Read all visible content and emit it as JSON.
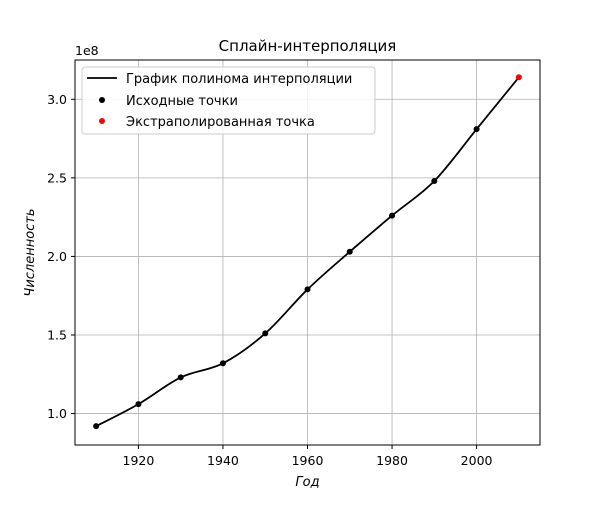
{
  "chart_data": {
    "type": "line",
    "title": "Сплайн-интерполяция",
    "xlabel": "Год",
    "ylabel": "Численность",
    "y_multiplier_label": "1e8",
    "xlim": [
      1905,
      2015
    ],
    "ylim": [
      0.8,
      3.25
    ],
    "x_ticks": [
      1920,
      1940,
      1960,
      1980,
      2000
    ],
    "y_ticks": [
      1.0,
      1.5,
      2.0,
      2.5,
      3.0
    ],
    "y_tick_labels": [
      "1.0",
      "1.5",
      "2.0",
      "2.5",
      "3.0"
    ],
    "grid": true,
    "legend_position": "top-left",
    "colors": {
      "line": "#000000",
      "points": "#000000",
      "extrapolated": "#ff0000",
      "grid": "#b0b0b0"
    },
    "series": [
      {
        "name": "График полинома интерполяции",
        "kind": "line",
        "x": [
          1910,
          1920,
          1930,
          1940,
          1950,
          1960,
          1970,
          1980,
          1990,
          2000,
          2010
        ],
        "y": [
          0.92,
          1.06,
          1.23,
          1.32,
          1.51,
          1.79,
          2.03,
          2.26,
          2.48,
          2.81,
          3.14
        ]
      },
      {
        "name": "Исходные точки",
        "kind": "scatter",
        "x": [
          1910,
          1920,
          1930,
          1940,
          1950,
          1960,
          1970,
          1980,
          1990,
          2000
        ],
        "y": [
          0.92,
          1.06,
          1.23,
          1.32,
          1.51,
          1.79,
          2.03,
          2.26,
          2.48,
          2.81
        ]
      },
      {
        "name": "Экстраполированная точка",
        "kind": "scatter",
        "x": [
          2010
        ],
        "y": [
          3.14
        ]
      }
    ]
  }
}
